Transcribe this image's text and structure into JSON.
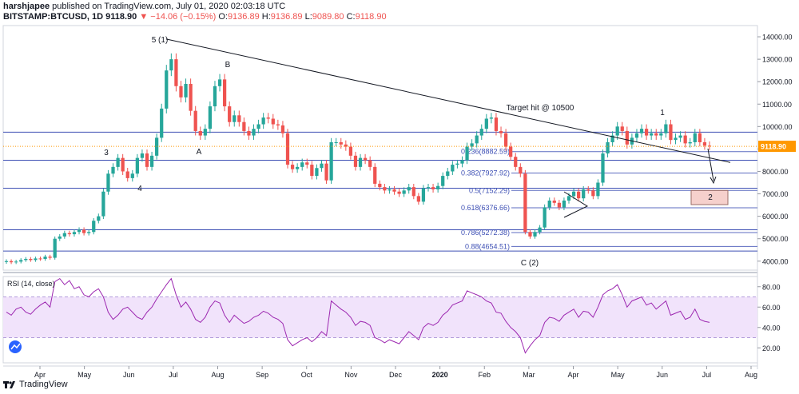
{
  "header": {
    "author": "harshjapee",
    "published_text": "published on TradingView.com, July 01, 2020 02:03:18 UTC",
    "symbol": "BITSTAMP:BTCUSD, 1D",
    "last": "9118.90",
    "change": "▼ −14.06 (−0.15%)",
    "o_label": "O:",
    "o": "9136.89",
    "h_label": "H:",
    "h": "9136.89",
    "l_label": "L:",
    "l": "9089.80",
    "c_label": "C:",
    "c": "9118.90"
  },
  "footer": {
    "brand": "TradingView"
  },
  "colors": {
    "up": "#26a69a",
    "down": "#ef5350",
    "fib": "#3f51b5",
    "rsi": "#9c27b0",
    "rsi_band": "#f1e3fb",
    "last_badge": "#ff9800",
    "box": "#f6d0cc"
  },
  "chart_data": [
    {
      "type": "candlestick",
      "title": "BITSTAMP:BTCUSD, 1D",
      "ylim": [
        3600,
        14500
      ],
      "y_ticks": [
        "14000.00",
        "13000.00",
        "12000.00",
        "11000.00",
        "10000.00",
        "9000.00",
        "8000.00",
        "7000.00",
        "6000.00",
        "5000.00",
        "4000.00"
      ],
      "x_ticks": [
        "Apr",
        "May",
        "Jun",
        "Jul",
        "Aug",
        "Sep",
        "Oct",
        "Nov",
        "Dec",
        "2020",
        "Feb",
        "Mar",
        "Apr",
        "May",
        "Jun",
        "Jul",
        "Aug"
      ],
      "last_price_label": "9118.90",
      "fib_levels": [
        {
          "label": "0.236(8882.59)",
          "value": 8882.59
        },
        {
          "label": "0.382(7927.92)",
          "value": 7927.92
        },
        {
          "label": "0.5(7152.29)",
          "value": 7152.29
        },
        {
          "label": "0.618(6376.66)",
          "value": 6376.66
        },
        {
          "label": "0.786(5272.38)",
          "value": 5272.38
        },
        {
          "label": "0.88(4654.51)",
          "value": 4654.51
        }
      ],
      "horizontal_lines": [
        9750,
        8500,
        7250,
        5400,
        4450
      ],
      "annotations": [
        "5 (1)",
        "B",
        "3",
        "A",
        "4",
        "Target hit @ 10500",
        "1",
        "C (2)",
        "2"
      ],
      "candles_close": [
        4000,
        3950,
        3980,
        4050,
        4100,
        4050,
        4120,
        4100,
        4200,
        4150,
        5000,
        5100,
        5250,
        5200,
        5300,
        5400,
        5250,
        5300,
        5800,
        6000,
        7100,
        7900,
        8200,
        8600,
        8000,
        7700,
        7900,
        8600,
        8800,
        8200,
        8700,
        9500,
        10800,
        12500,
        13000,
        11800,
        11300,
        11900,
        10700,
        9800,
        9600,
        9900,
        10900,
        11800,
        12100,
        10900,
        10200,
        10500,
        10200,
        9800,
        9600,
        9900,
        10100,
        10400,
        10350,
        10100,
        10050,
        9700,
        8300,
        8100,
        8200,
        8400,
        8300,
        7800,
        8150,
        8350,
        7600,
        9300,
        9300,
        9200,
        9100,
        8700,
        8200,
        8600,
        8500,
        8200,
        7450,
        7300,
        7150,
        7200,
        7100,
        7000,
        7150,
        7300,
        6900,
        6650,
        7250,
        7300,
        7200,
        7350,
        7800,
        8000,
        8300,
        8350,
        8500,
        9100,
        9250,
        9600,
        9900,
        10350,
        10400,
        9800,
        9700,
        9100,
        8650,
        8200,
        7900,
        5300,
        5100,
        5300,
        5500,
        6400,
        6700,
        6600,
        6400,
        6700,
        6900,
        7100,
        6800,
        7200,
        7150,
        6900,
        7500,
        8800,
        9300,
        9600,
        10000,
        9800,
        9200,
        9500,
        9700,
        9900,
        9600,
        9700,
        9600,
        9700,
        10100,
        9400,
        9500,
        9600,
        9250,
        9300,
        9700,
        9300,
        9150,
        9119
      ],
      "rsi": {
        "label": "RSI (14, close)",
        "ylim": [
          10,
          90
        ],
        "y_ticks": [
          "80.00",
          "60.00",
          "40.00",
          "20.00"
        ],
        "band": [
          30,
          70
        ],
        "values": [
          55,
          52,
          58,
          60,
          55,
          53,
          58,
          62,
          65,
          60,
          85,
          88,
          82,
          86,
          78,
          80,
          72,
          70,
          75,
          78,
          70,
          55,
          48,
          52,
          58,
          60,
          55,
          50,
          48,
          55,
          60,
          68,
          75,
          82,
          88,
          72,
          60,
          65,
          58,
          48,
          45,
          50,
          60,
          66,
          64,
          52,
          45,
          52,
          48,
          44,
          46,
          50,
          52,
          56,
          54,
          50,
          48,
          44,
          28,
          22,
          25,
          28,
          30,
          26,
          30,
          36,
          32,
          66,
          62,
          58,
          55,
          50,
          42,
          46,
          45,
          42,
          30,
          28,
          25,
          28,
          26,
          24,
          30,
          36,
          32,
          28,
          40,
          44,
          42,
          45,
          52,
          56,
          62,
          64,
          66,
          76,
          74,
          72,
          70,
          66,
          64,
          55,
          54,
          46,
          40,
          36,
          30,
          15,
          22,
          28,
          32,
          45,
          50,
          49,
          46,
          52,
          55,
          58,
          50,
          56,
          55,
          50,
          60,
          72,
          76,
          78,
          82,
          72,
          60,
          66,
          68,
          70,
          62,
          64,
          58,
          62,
          66,
          52,
          54,
          56,
          48,
          50,
          58,
          48,
          46,
          45
        ]
      }
    }
  ]
}
